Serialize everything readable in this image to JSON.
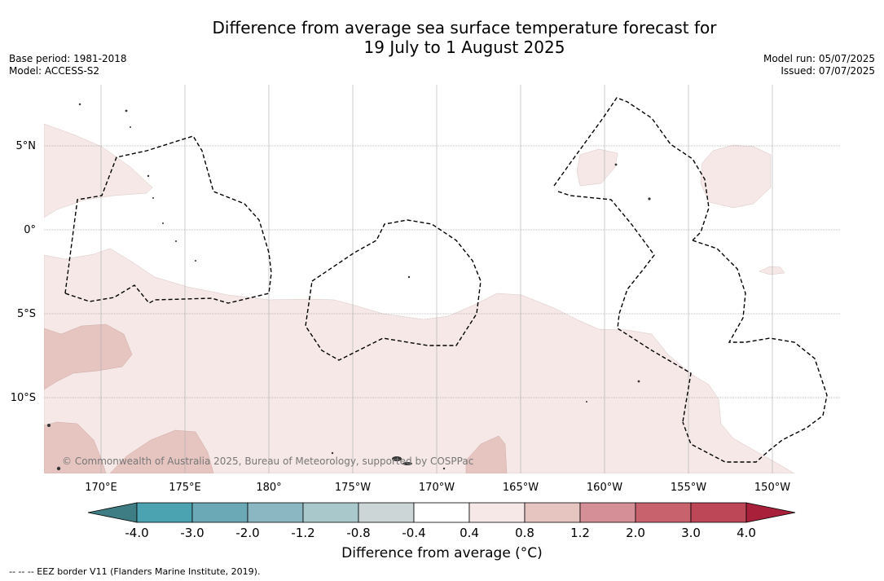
{
  "title_line1": "Difference from average sea surface temperature forecast for",
  "title_line2": "19 July to 1 August 2025",
  "base_period": "Base period: 1981-2018",
  "model": "Model: ACCESS-S2",
  "model_run": "Model run: 05/07/2025",
  "issued": "Issued: 07/07/2025",
  "lat_labels": [
    "5°N",
    "0°",
    "5°S",
    "10°S"
  ],
  "lon_labels": [
    "170°E",
    "175°E",
    "180°",
    "175°W",
    "170°W",
    "165°W",
    "160°W",
    "155°W",
    "150°W"
  ],
  "colorbar": {
    "ticks": [
      "-4.0",
      "-3.0",
      "-2.0",
      "-1.2",
      "-0.8",
      "-0.4",
      "0.4",
      "0.8",
      "1.2",
      "2.0",
      "3.0",
      "4.0"
    ],
    "colors": [
      "#3f7d84",
      "#4ba3b2",
      "#6ba9b7",
      "#8ab7c1",
      "#a9c8cc",
      "#ccd6d6",
      "#ffffff",
      "#f5e8e6",
      "#e6c5c1",
      "#d58f96",
      "#c8636d",
      "#be4757",
      "#a8203a"
    ],
    "title": "Difference from average (°C)"
  },
  "copyright": "© Commonwealth of Australia 2025, Bureau of Meteorology, supported by COSPPac",
  "footnote": "--  --  -- EEZ border V11 (Flanders Marine Institute, 2019).",
  "colors": {
    "anomaly_04_08": "#f5e8e6",
    "anomaly_08_12": "#e6c5c1",
    "eez": "#000000"
  }
}
